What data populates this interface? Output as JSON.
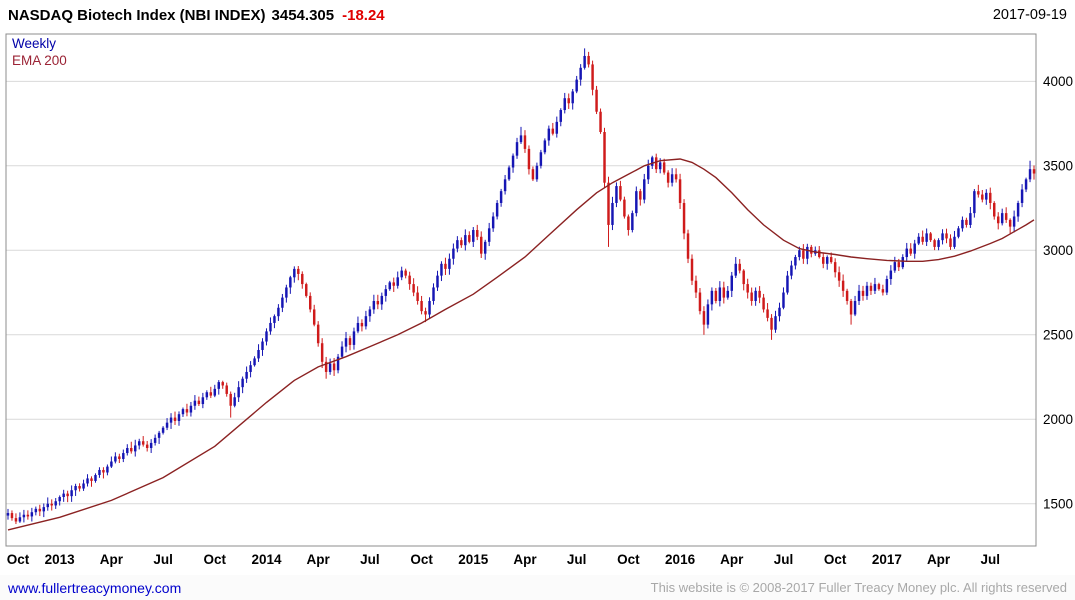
{
  "header": {
    "title": "NASDAQ Biotech Index (NBI INDEX)",
    "last": "3454.305",
    "change": "-18.24",
    "date": "2017-09-19"
  },
  "legend": {
    "timeframe": "Weekly",
    "overlay": "EMA 200"
  },
  "footer": {
    "site": "www.fullertreacymoney.com",
    "copyright": "This website is © 2008-2017 Fuller Treacy Money plc. All rights reserved"
  },
  "chart_data": {
    "type": "candlestick",
    "title": "NASDAQ Biotech Index (NBI INDEX) weekly with 200 EMA",
    "timeframe": "weekly",
    "x_range": [
      "2012-10",
      "2017-09"
    ],
    "ylim": [
      1250,
      4280
    ],
    "y_ticks": [
      1500,
      2000,
      2500,
      3000,
      3500,
      4000
    ],
    "x_ticks": [
      {
        "label": "Oct",
        "week": 0
      },
      {
        "label": "2013",
        "week": 13,
        "year": true
      },
      {
        "label": "Apr",
        "week": 26
      },
      {
        "label": "Jul",
        "week": 39
      },
      {
        "label": "Oct",
        "week": 52
      },
      {
        "label": "2014",
        "week": 65,
        "year": true
      },
      {
        "label": "Apr",
        "week": 78
      },
      {
        "label": "Jul",
        "week": 91
      },
      {
        "label": "Oct",
        "week": 104
      },
      {
        "label": "2015",
        "week": 117,
        "year": true
      },
      {
        "label": "Apr",
        "week": 130
      },
      {
        "label": "Jul",
        "week": 143
      },
      {
        "label": "Oct",
        "week": 156
      },
      {
        "label": "2016",
        "week": 169,
        "year": true
      },
      {
        "label": "Apr",
        "week": 182
      },
      {
        "label": "Jul",
        "week": 195
      },
      {
        "label": "Oct",
        "week": 208
      },
      {
        "label": "2017",
        "week": 221,
        "year": true
      },
      {
        "label": "Apr",
        "week": 234
      },
      {
        "label": "Jul",
        "week": 247
      }
    ],
    "series": [
      {
        "name": "NBI weekly candles"
      },
      {
        "name": "EMA 200"
      }
    ],
    "first_open": 1430,
    "closes": [
      1445,
      1415,
      1395,
      1420,
      1435,
      1425,
      1450,
      1470,
      1455,
      1480,
      1500,
      1490,
      1515,
      1540,
      1560,
      1545,
      1580,
      1605,
      1590,
      1620,
      1650,
      1635,
      1670,
      1700,
      1685,
      1720,
      1750,
      1780,
      1765,
      1800,
      1830,
      1810,
      1845,
      1870,
      1850,
      1830,
      1860,
      1890,
      1920,
      1950,
      1980,
      2010,
      1990,
      2030,
      2060,
      2040,
      2080,
      2110,
      2090,
      2130,
      2160,
      2140,
      2180,
      2220,
      2200,
      2150,
      2080,
      2130,
      2190,
      2240,
      2280,
      2320,
      2360,
      2410,
      2460,
      2520,
      2570,
      2610,
      2660,
      2720,
      2780,
      2840,
      2890,
      2860,
      2800,
      2730,
      2650,
      2560,
      2450,
      2340,
      2280,
      2330,
      2290,
      2370,
      2430,
      2480,
      2440,
      2520,
      2570,
      2550,
      2610,
      2650,
      2700,
      2680,
      2730,
      2770,
      2810,
      2790,
      2840,
      2880,
      2850,
      2800,
      2750,
      2700,
      2640,
      2620,
      2700,
      2780,
      2850,
      2920,
      2890,
      2950,
      3010,
      3060,
      3030,
      3090,
      3050,
      3120,
      3080,
      2980,
      3050,
      3130,
      3200,
      3280,
      3350,
      3420,
      3490,
      3560,
      3640,
      3680,
      3600,
      3480,
      3420,
      3500,
      3580,
      3650,
      3720,
      3690,
      3760,
      3830,
      3900,
      3870,
      3940,
      4010,
      4080,
      4150,
      4100,
      3950,
      3820,
      3700,
      3400,
      3150,
      3280,
      3380,
      3300,
      3200,
      3120,
      3220,
      3350,
      3300,
      3420,
      3500,
      3550,
      3480,
      3520,
      3460,
      3400,
      3450,
      3420,
      3280,
      3100,
      2950,
      2820,
      2750,
      2640,
      2560,
      2680,
      2760,
      2700,
      2780,
      2720,
      2760,
      2850,
      2920,
      2880,
      2800,
      2750,
      2700,
      2760,
      2720,
      2650,
      2600,
      2530,
      2610,
      2660,
      2750,
      2850,
      2910,
      2960,
      3000,
      2950,
      3020,
      2980,
      3000,
      2960,
      2920,
      2960,
      2930,
      2870,
      2820,
      2760,
      2700,
      2620,
      2700,
      2760,
      2730,
      2790,
      2760,
      2800,
      2770,
      2750,
      2830,
      2880,
      2930,
      2900,
      2960,
      3010,
      2980,
      3040,
      3080,
      3050,
      3100,
      3060,
      3020,
      3060,
      3100,
      3070,
      3020,
      3080,
      3130,
      3180,
      3150,
      3220,
      3350,
      3330,
      3300,
      3340,
      3280,
      3200,
      3160,
      3220,
      3180,
      3140,
      3200,
      3280,
      3360,
      3420,
      3480,
      3454.3
    ],
    "wick_overrides": {
      "2": {
        "low": 1380
      },
      "56": {
        "low": 2010
      },
      "72": {
        "high": 2905
      },
      "80": {
        "low": 2240
      },
      "105": {
        "low": 2575
      },
      "129": {
        "high": 3730
      },
      "145": {
        "high": 4195
      },
      "151": {
        "low": 3020
      },
      "175": {
        "low": 2500
      },
      "183": {
        "high": 2960
      },
      "192": {
        "low": 2470
      },
      "212": {
        "low": 2560
      },
      "252": {
        "low": 3100
      },
      "257": {
        "high": 3530
      }
    },
    "ema_points": [
      [
        0,
        1345
      ],
      [
        13,
        1420
      ],
      [
        26,
        1520
      ],
      [
        39,
        1655
      ],
      [
        52,
        1840
      ],
      [
        65,
        2100
      ],
      [
        72,
        2230
      ],
      [
        78,
        2310
      ],
      [
        85,
        2370
      ],
      [
        91,
        2430
      ],
      [
        98,
        2500
      ],
      [
        104,
        2570
      ],
      [
        110,
        2650
      ],
      [
        117,
        2740
      ],
      [
        123,
        2840
      ],
      [
        130,
        2960
      ],
      [
        136,
        3090
      ],
      [
        143,
        3240
      ],
      [
        148,
        3340
      ],
      [
        152,
        3400
      ],
      [
        156,
        3450
      ],
      [
        160,
        3500
      ],
      [
        164,
        3530
      ],
      [
        169,
        3540
      ],
      [
        172,
        3520
      ],
      [
        175,
        3480
      ],
      [
        178,
        3430
      ],
      [
        182,
        3340
      ],
      [
        186,
        3240
      ],
      [
        190,
        3150
      ],
      [
        195,
        3060
      ],
      [
        199,
        3010
      ],
      [
        203,
        2990
      ],
      [
        208,
        2975
      ],
      [
        212,
        2960
      ],
      [
        216,
        2950
      ],
      [
        221,
        2940
      ],
      [
        226,
        2935
      ],
      [
        230,
        2935
      ],
      [
        234,
        2945
      ],
      [
        238,
        2965
      ],
      [
        242,
        2995
      ],
      [
        247,
        3040
      ],
      [
        250,
        3070
      ],
      [
        253,
        3110
      ],
      [
        256,
        3150
      ],
      [
        258,
        3180
      ]
    ],
    "colors": {
      "up": "#1616b4",
      "down": "#cf1b1b",
      "ema": "#8b2222",
      "grid": "#d9d9d9",
      "border": "#8c8c8c",
      "change_red": "#e00000",
      "timeframe_blue": "#0000a8",
      "link_blue": "#0000cc"
    }
  }
}
